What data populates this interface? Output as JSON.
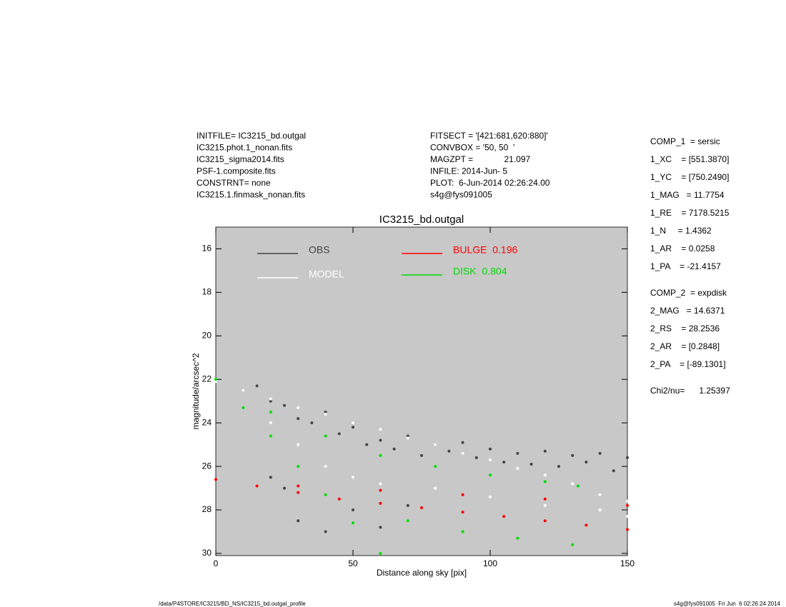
{
  "header": {
    "left": [
      "INITFILE= IC3215_bd.outgal",
      "IC3215.phot.1_nonan.fits",
      "IC3215_sigma2014.fits",
      "PSF-1.composite.fits",
      "CONSTRNT= none",
      "IC3215.1.finmask_nonan.fits"
    ],
    "middle": [
      "FITSECT = '[421:681,620:880]'",
      "CONVBOX = '50, 50  '",
      "MAGZPT =             21.097",
      "INFILE: 2014-Jun- 5",
      "PLOT:  6-Jun-2014 02:26:24.00",
      "s4g@fys091005"
    ]
  },
  "parameters": [
    [
      "COMP_1  = sersic",
      "1_XC    = [551.3870]",
      "1_YC    = [750.2490]",
      "1_MAG   = 11.7754",
      "1_RE    = 7178.5215",
      "1_N     = 1.4362",
      "1_AR    = 0.0258",
      "1_PA    = -21.4157"
    ],
    [
      "COMP_2  = expdisk",
      "2_MAG   = 14.6371",
      "2_RS    = 28.2536",
      "2_AR    = [0.2848]",
      "2_PA    = [-89.1301]"
    ],
    [
      "Chi2/nu=      1.25397"
    ]
  ],
  "footer": {
    "left": "/data/P4STORE/IC3215/BD_NS/IC3215_bd.outgal_profile",
    "right": "s4g@fys091005  Fri Jun  6 02:26:24 2014"
  },
  "chart_data": {
    "type": "scatter",
    "title": "IC3215_bd.outgal",
    "x_label": "Distance along sky [pix]",
    "y_label": "magnitude/arcsec^2",
    "xlim": [
      0,
      150
    ],
    "xticks": [
      0,
      50,
      100,
      150
    ],
    "ylim": [
      30.1,
      15
    ],
    "yticks": [
      16,
      18,
      20,
      22,
      24,
      26,
      28,
      30
    ],
    "background": "#c8c8c8",
    "series": [
      {
        "name": "OBS",
        "color": "#444444",
        "x": [
          10,
          15,
          20,
          25,
          30,
          35,
          40,
          45,
          50,
          55,
          60,
          65,
          70,
          75,
          80,
          85,
          90,
          95,
          100,
          105,
          110,
          115,
          120,
          125,
          130,
          135,
          140,
          145,
          150,
          30,
          40,
          25,
          60,
          20,
          50,
          70
        ],
        "values": [
          22.5,
          22.3,
          23,
          23.2,
          23.8,
          24,
          23.5,
          24.5,
          24.2,
          25,
          24.8,
          25.2,
          24.6,
          25.5,
          25,
          25.3,
          24.9,
          25.6,
          25.2,
          25.8,
          25.4,
          25.9,
          25.3,
          26,
          25.5,
          25.8,
          25.4,
          26.2,
          25.6,
          28.5,
          29,
          27,
          28.8,
          26.5,
          28,
          27.8
        ]
      },
      {
        "name": "MODEL",
        "color": "#ffffff",
        "x": [
          0,
          10,
          20,
          30,
          40,
          50,
          60,
          70,
          80,
          90,
          100,
          110,
          120,
          130,
          140,
          150,
          20,
          30,
          40,
          50,
          60,
          80,
          100,
          120,
          140,
          150
        ],
        "values": [
          22.1,
          22.5,
          22.9,
          23.3,
          23.6,
          24,
          24.3,
          24.7,
          25,
          25.4,
          25.7,
          26.1,
          26.4,
          26.8,
          27.3,
          27.6,
          24,
          25,
          26,
          26.5,
          26.8,
          27,
          27.4,
          27.8,
          28,
          28.3
        ]
      },
      {
        "name": "BULGE  0.196",
        "color": "#ff0000",
        "x": [
          0,
          15,
          30,
          45,
          60,
          75,
          90,
          105,
          120,
          135,
          150,
          30,
          60,
          90,
          120,
          150
        ],
        "values": [
          26.6,
          26.9,
          27.2,
          27.5,
          27.7,
          27.9,
          28.1,
          28.3,
          28.5,
          28.7,
          28.9,
          26.9,
          27.1,
          27.3,
          27.5,
          27.8
        ]
      },
      {
        "name": "DISK  0.804",
        "color": "#00dd00",
        "x": [
          0,
          10,
          20,
          30,
          40,
          50,
          60,
          20,
          40,
          60,
          80,
          100,
          120,
          132,
          70,
          90,
          110,
          130
        ],
        "values": [
          22,
          23.3,
          24.6,
          26,
          27.3,
          28.6,
          30,
          23.5,
          24.6,
          25.5,
          26,
          26.4,
          26.7,
          26.9,
          28.5,
          29,
          29.3,
          29.6
        ]
      }
    ]
  }
}
